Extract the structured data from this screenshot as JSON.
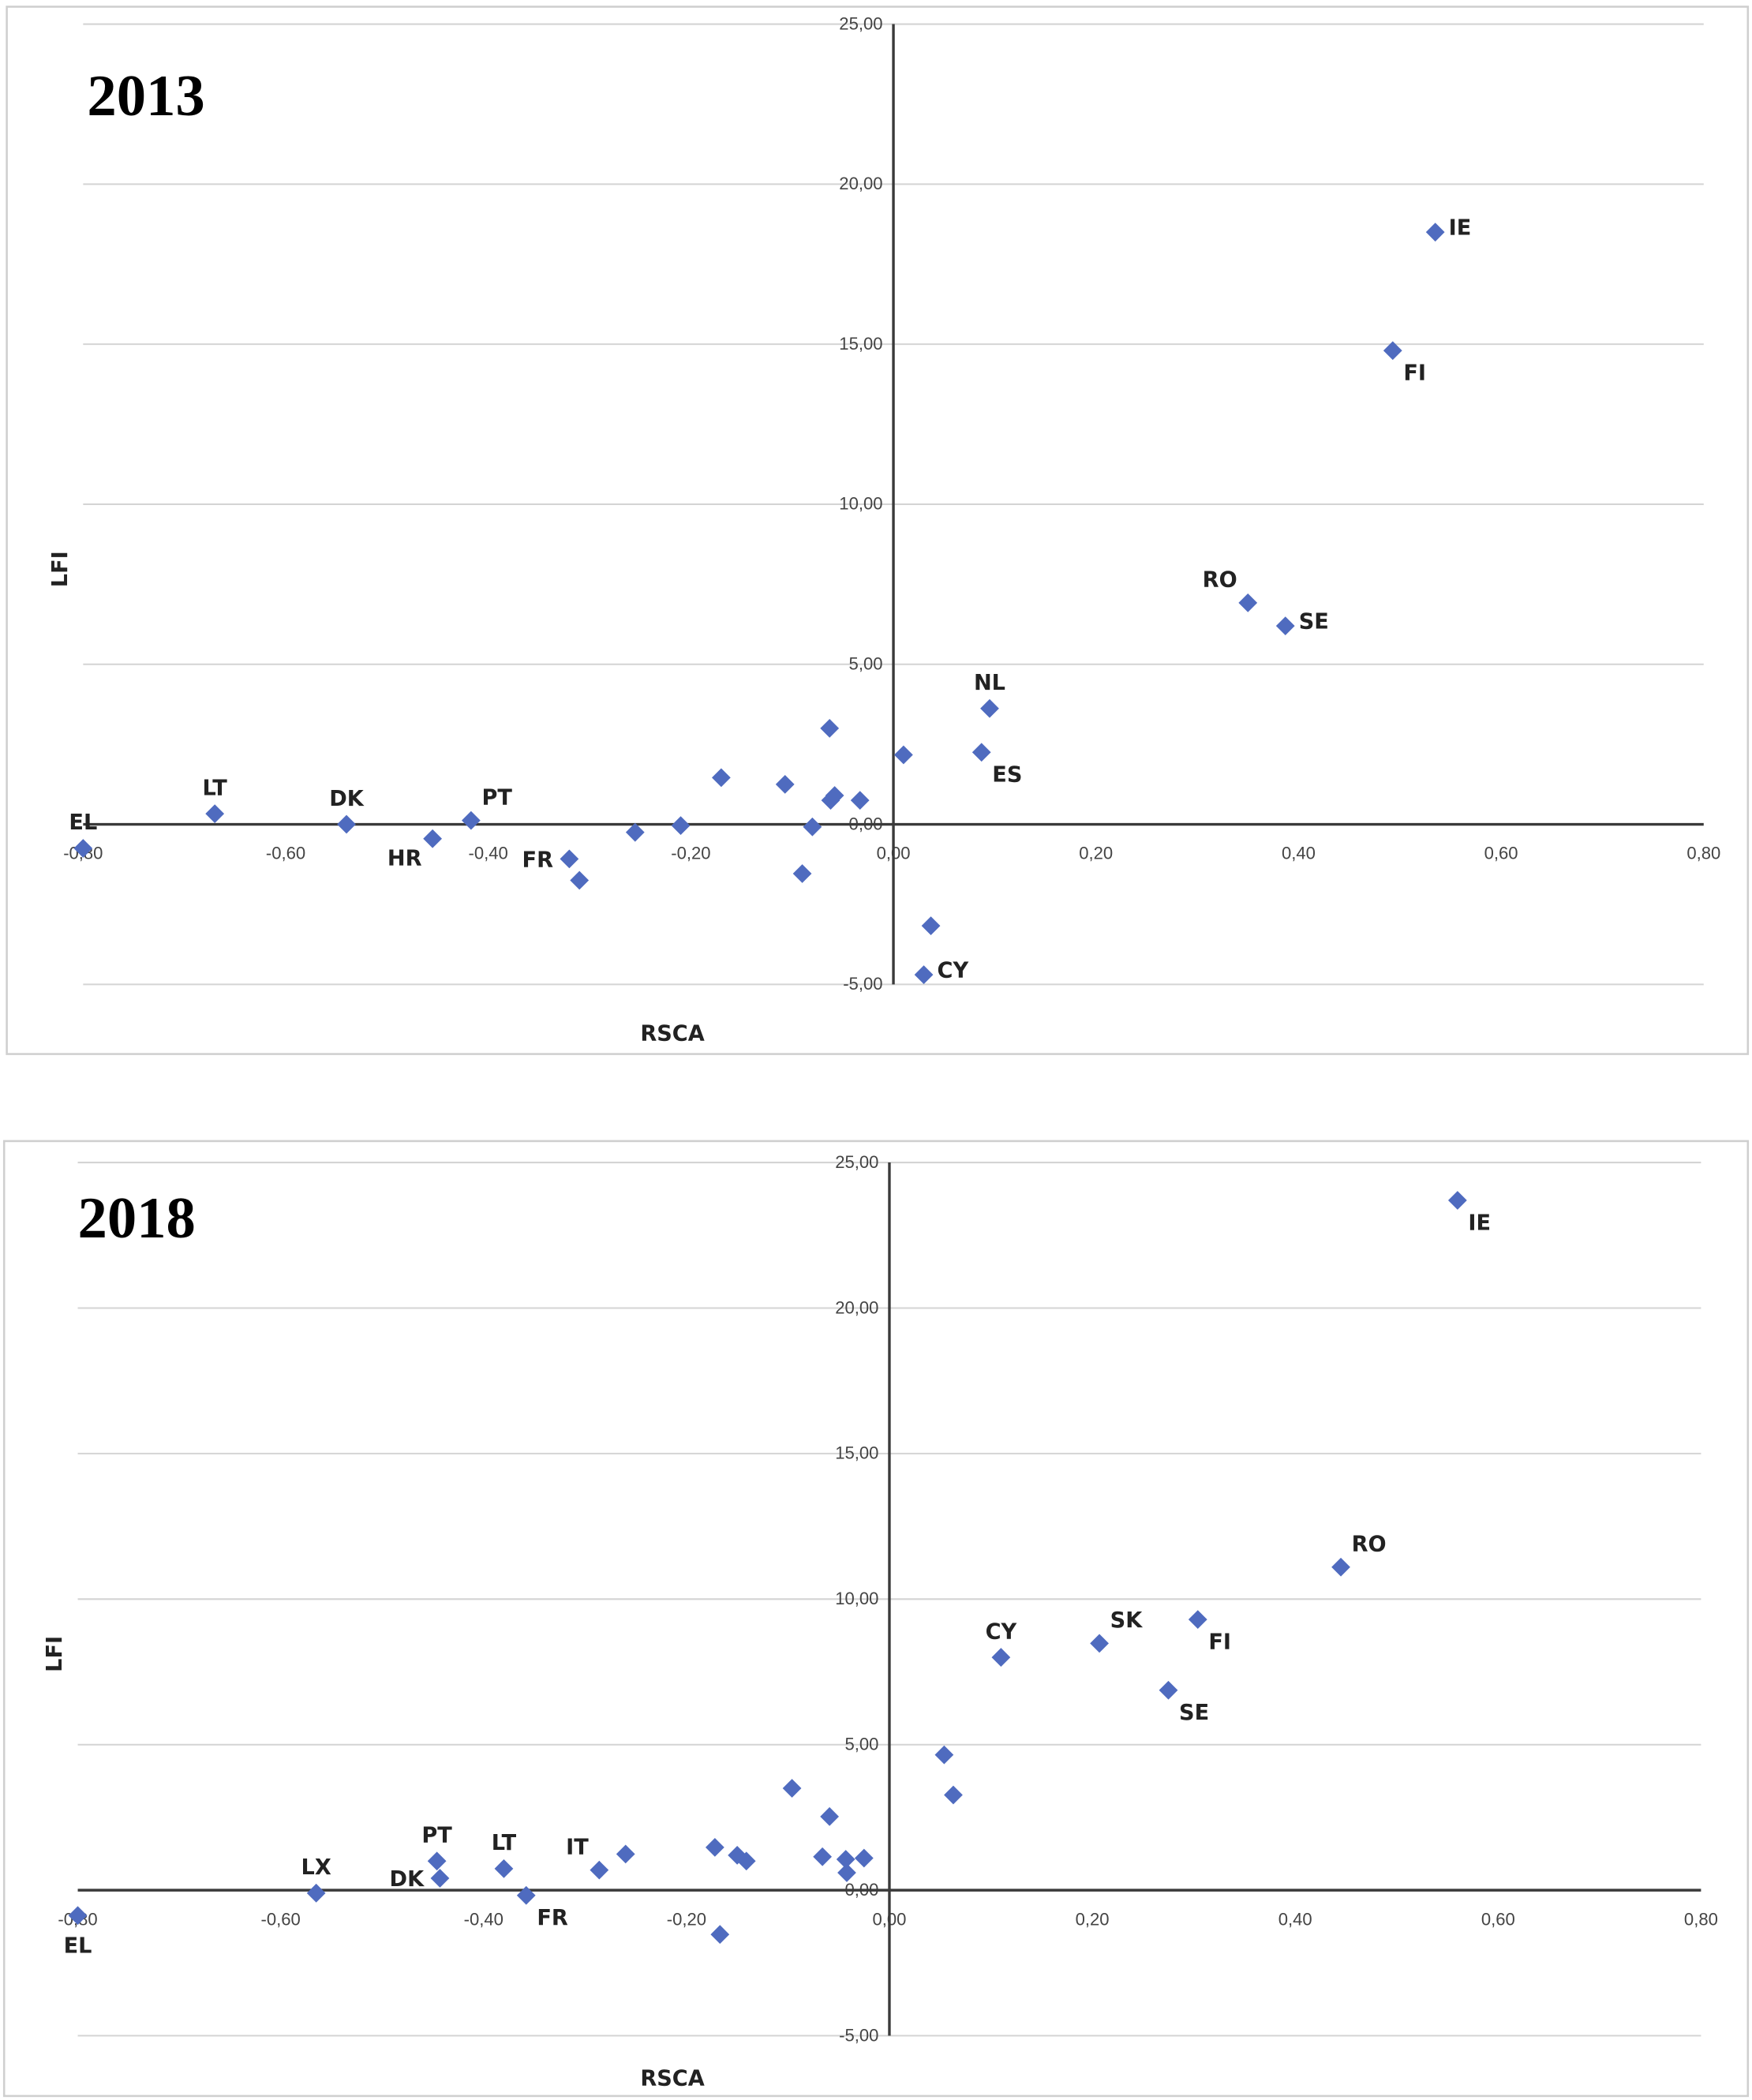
{
  "chart_data": [
    {
      "type": "scatter",
      "title": "2013",
      "xlabel": "RSCA",
      "ylabel": "LFI",
      "xlim": [
        -0.8,
        0.8
      ],
      "ylim": [
        -5,
        25
      ],
      "x_ticks": [
        "-0,80",
        "-0,60",
        "-0,40",
        "-0,20",
        "0,00",
        "0,20",
        "0,40",
        "0,60",
        "0,80"
      ],
      "y_ticks": [
        "-5,00",
        "0,00",
        "5,00",
        "10,00",
        "15,00",
        "20,00",
        "25,00"
      ],
      "grid": "horizontal",
      "marker_color": "#4f6bbf",
      "points": [
        {
          "x": -0.8,
          "y": -0.75,
          "label": "EL",
          "pos": "above"
        },
        {
          "x": -0.67,
          "y": 0.33,
          "label": "LT",
          "pos": "above"
        },
        {
          "x": -0.54,
          "y": 0.0,
          "label": "DK",
          "pos": "above"
        },
        {
          "x": -0.455,
          "y": -0.45,
          "label": "HR",
          "pos": "below-left"
        },
        {
          "x": -0.417,
          "y": 0.12,
          "label": "PT",
          "pos": "above-right"
        },
        {
          "x": -0.32,
          "y": -1.08,
          "label": "FR",
          "pos": "left"
        },
        {
          "x": -0.31,
          "y": -1.75
        },
        {
          "x": -0.255,
          "y": -0.25
        },
        {
          "x": -0.21,
          "y": -0.04
        },
        {
          "x": -0.17,
          "y": 1.46
        },
        {
          "x": -0.107,
          "y": 1.25
        },
        {
          "x": -0.08,
          "y": -0.08
        },
        {
          "x": -0.09,
          "y": -1.54
        },
        {
          "x": -0.063,
          "y": 3.0
        },
        {
          "x": -0.062,
          "y": 0.75
        },
        {
          "x": -0.058,
          "y": 0.9
        },
        {
          "x": -0.033,
          "y": 0.75
        },
        {
          "x": 0.01,
          "y": 2.17
        },
        {
          "x": 0.037,
          "y": -3.17
        },
        {
          "x": 0.03,
          "y": -4.7,
          "label": "CY",
          "pos": "right"
        },
        {
          "x": 0.087,
          "y": 2.25,
          "label": "ES",
          "pos": "below-right"
        },
        {
          "x": 0.095,
          "y": 3.62,
          "label": "NL",
          "pos": "above"
        },
        {
          "x": 0.35,
          "y": 6.92,
          "label": "RO",
          "pos": "above-left"
        },
        {
          "x": 0.387,
          "y": 6.2,
          "label": "SE",
          "pos": "right"
        },
        {
          "x": 0.493,
          "y": 14.8,
          "label": "FI",
          "pos": "below-right"
        },
        {
          "x": 0.535,
          "y": 18.5,
          "label": "IE",
          "pos": "right"
        }
      ]
    },
    {
      "type": "scatter",
      "title": "2018",
      "xlabel": "RSCA",
      "ylabel": "LFI",
      "xlim": [
        -0.8,
        0.8
      ],
      "ylim": [
        -5,
        25
      ],
      "x_ticks": [
        "-0,80",
        "-0,60",
        "-0,40",
        "-0,20",
        "0,00",
        "0,20",
        "0,40",
        "0,60",
        "0,80"
      ],
      "y_ticks": [
        "-5,00",
        "0,00",
        "5,00",
        "10,00",
        "15,00",
        "20,00",
        "25,00"
      ],
      "grid": "horizontal",
      "marker_color": "#4f6bbf",
      "points": [
        {
          "x": -0.8,
          "y": -0.87,
          "label": "EL",
          "pos": "below"
        },
        {
          "x": -0.565,
          "y": -0.1,
          "label": "LX",
          "pos": "above"
        },
        {
          "x": -0.443,
          "y": 0.41,
          "label": "DK",
          "pos": "left"
        },
        {
          "x": -0.446,
          "y": 1.0,
          "label": "PT",
          "pos": "above"
        },
        {
          "x": -0.38,
          "y": 0.74,
          "label": "LT",
          "pos": "above"
        },
        {
          "x": -0.358,
          "y": -0.18,
          "label": "FR",
          "pos": "below-right"
        },
        {
          "x": -0.286,
          "y": 0.69,
          "label": "IT",
          "pos": "above-left"
        },
        {
          "x": -0.26,
          "y": 1.24
        },
        {
          "x": -0.172,
          "y": 1.47
        },
        {
          "x": -0.167,
          "y": -1.52
        },
        {
          "x": -0.15,
          "y": 1.2
        },
        {
          "x": -0.141,
          "y": 1.0
        },
        {
          "x": -0.096,
          "y": 3.5
        },
        {
          "x": -0.059,
          "y": 2.53
        },
        {
          "x": -0.066,
          "y": 1.15
        },
        {
          "x": -0.043,
          "y": 1.06
        },
        {
          "x": -0.042,
          "y": 0.6
        },
        {
          "x": -0.025,
          "y": 1.1
        },
        {
          "x": 0.054,
          "y": 4.65
        },
        {
          "x": 0.063,
          "y": 3.27
        },
        {
          "x": 0.11,
          "y": 8.0,
          "label": "CY",
          "pos": "above"
        },
        {
          "x": 0.207,
          "y": 8.48,
          "label": "SK",
          "pos": "above-right"
        },
        {
          "x": 0.275,
          "y": 6.87,
          "label": "SE",
          "pos": "below-right"
        },
        {
          "x": 0.304,
          "y": 9.3,
          "label": "FI",
          "pos": "below-right"
        },
        {
          "x": 0.445,
          "y": 11.1,
          "label": "RO",
          "pos": "above-right"
        },
        {
          "x": 0.56,
          "y": 23.7,
          "label": "IE",
          "pos": "below-right"
        }
      ]
    }
  ]
}
